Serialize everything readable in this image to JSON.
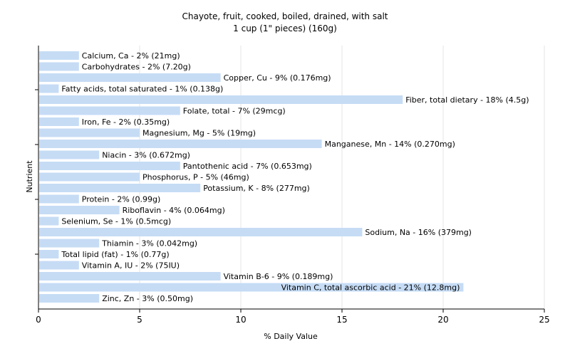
{
  "chart_data": {
    "type": "bar",
    "orientation": "horizontal",
    "title": "Chayote, fruit, cooked, boiled, drained, with salt",
    "subtitle": "1 cup (1\" pieces) (160g)",
    "xlabel": "% Daily Value",
    "ylabel": "Nutrient",
    "xlim": [
      0,
      25
    ],
    "xticks": [
      0,
      5,
      10,
      15,
      20,
      25
    ],
    "grid": true,
    "bar_color": "#c6dcf5",
    "grid_color": "#e4e4e4",
    "categories": [
      "Calcium, Ca",
      "Carbohydrates",
      "Copper, Cu",
      "Fatty acids, total saturated",
      "Fiber, total dietary",
      "Folate, total",
      "Iron, Fe",
      "Magnesium, Mg",
      "Manganese, Mn",
      "Niacin",
      "Pantothenic acid",
      "Phosphorus, P",
      "Potassium, K",
      "Protein",
      "Riboflavin",
      "Selenium, Se",
      "Sodium, Na",
      "Thiamin",
      "Total lipid (fat)",
      "Vitamin A, IU",
      "Vitamin B-6",
      "Vitamin C, total ascorbic acid",
      "Zinc, Zn"
    ],
    "values": [
      2,
      2,
      9,
      1,
      18,
      7,
      2,
      5,
      14,
      3,
      7,
      5,
      8,
      2,
      4,
      1,
      16,
      3,
      1,
      2,
      9,
      21,
      3
    ],
    "labels": [
      "Calcium, Ca - 2% (21mg)",
      "Carbohydrates - 2% (7.20g)",
      "Copper, Cu - 9% (0.176mg)",
      "Fatty acids, total saturated - 1% (0.138g)",
      "Fiber, total dietary - 18% (4.5g)",
      "Folate, total - 7% (29mcg)",
      "Iron, Fe - 2% (0.35mg)",
      "Magnesium, Mg - 5% (19mg)",
      "Manganese, Mn - 14% (0.270mg)",
      "Niacin - 3% (0.672mg)",
      "Pantothenic acid - 7% (0.653mg)",
      "Phosphorus, P - 5% (46mg)",
      "Potassium, K - 8% (277mg)",
      "Protein - 2% (0.99g)",
      "Riboflavin - 4% (0.064mg)",
      "Selenium, Se - 1% (0.5mcg)",
      "Sodium, Na - 16% (379mg)",
      "Thiamin - 3% (0.042mg)",
      "Total lipid (fat) - 1% (0.77g)",
      "Vitamin A, IU - 2% (75IU)",
      "Vitamin B-6 - 9% (0.189mg)",
      "Vitamin C, total ascorbic acid - 21% (12.8mg)",
      "Zinc, Zn - 3% (0.50mg)"
    ]
  }
}
